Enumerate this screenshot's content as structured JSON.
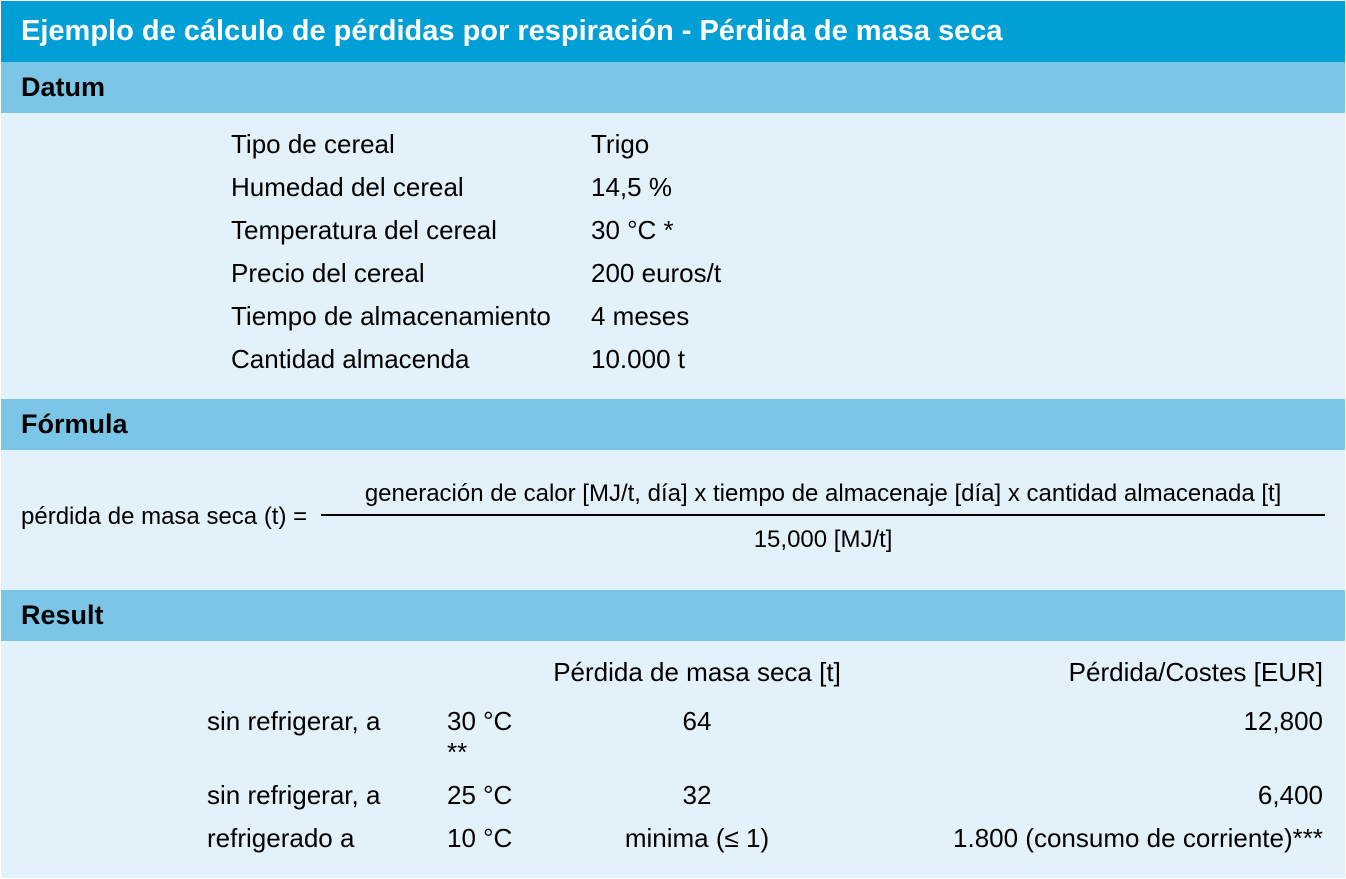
{
  "colors": {
    "title_bg": "#009fd6",
    "title_fg": "#ffffff",
    "header_bg": "#7bc5e7",
    "body_bg": "#e3f1fa",
    "text": "#000000"
  },
  "title": "Ejemplo de cálculo de pérdidas por respiración - Pérdida de masa seca",
  "sections": {
    "datum": {
      "header": "Datum",
      "rows": [
        {
          "label": "Tipo de cereal",
          "value": "Trigo"
        },
        {
          "label": "Humedad del cereal",
          "value": "14,5 %"
        },
        {
          "label": "Temperatura del cereal",
          "value": "30 °C *"
        },
        {
          "label": "Precio del cereal",
          "value": "200 euros/t"
        },
        {
          "label": "Tiempo de almacenamiento",
          "value": "4 meses"
        },
        {
          "label": "Cantidad almacenda",
          "value": "10.000 t"
        }
      ]
    },
    "formula": {
      "header": "Fórmula",
      "lhs": "pérdida de masa seca (t)  =",
      "numerator": "generación de calor [MJ/t, día] x tiempo de almacenaje [día] x cantidad almacenada [t]",
      "denominator": "15,000 [MJ/t]"
    },
    "result": {
      "header": "Result",
      "col_headers": {
        "mass": "Pérdida de masa seca [t]",
        "cost": "Pérdida/Costes [EUR]"
      },
      "rows": [
        {
          "cond": "sin refrigerar, a",
          "temp": "30 °C **",
          "mass": "64",
          "cost": "12,800"
        },
        {
          "cond": "sin refrigerar, a",
          "temp": "25 °C",
          "mass": "32",
          "cost": "6,400"
        },
        {
          "cond": "refrigerado a",
          "temp": "10 °C",
          "mass": "minima (≤ 1)",
          "cost": "1.800 (consumo de corriente)***"
        }
      ]
    }
  }
}
